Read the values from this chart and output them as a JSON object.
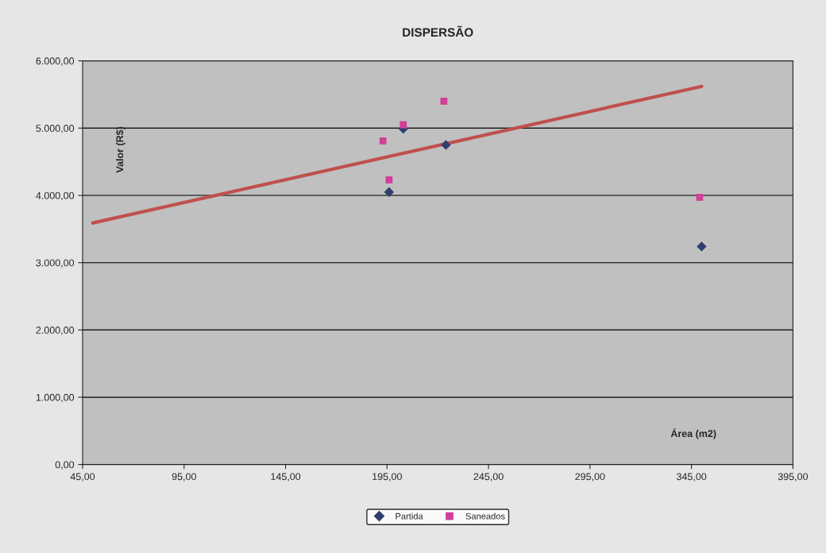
{
  "chart_data": {
    "type": "scatter",
    "title": "DISPERSÃO",
    "xlabel": "Área (m2)",
    "ylabel": "Valor (R$)",
    "xlim": [
      45,
      395
    ],
    "xticks": [
      {
        "value": 45,
        "label": "45,00"
      },
      {
        "value": 95,
        "label": "95,00"
      },
      {
        "value": 145,
        "label": "145,00"
      },
      {
        "value": 195,
        "label": "195,00"
      },
      {
        "value": 245,
        "label": "245,00"
      },
      {
        "value": 295,
        "label": "295,00"
      },
      {
        "value": 345,
        "label": "345,00"
      },
      {
        "value": 395,
        "label": "395,00"
      }
    ],
    "ylim": [
      0,
      6000
    ],
    "yticks": [
      {
        "value": 0,
        "label": "0,00"
      },
      {
        "value": 1000,
        "label": "1.000,00"
      },
      {
        "value": 2000,
        "label": "2.000,00"
      },
      {
        "value": 3000,
        "label": "3.000,00"
      },
      {
        "value": 4000,
        "label": "4.000,00"
      },
      {
        "value": 5000,
        "label": "5.000,00"
      },
      {
        "value": 6000,
        "label": "6.000,00"
      }
    ],
    "grid": "y",
    "legend": "bottom",
    "series": [
      {
        "name": "Partida",
        "color": "#2e3f6e",
        "marker": "diamond",
        "x": [
          196,
          203,
          224,
          350
        ],
        "values": [
          4050,
          4990,
          4750,
          3240
        ]
      },
      {
        "name": "Saneados",
        "color": "#d0409a",
        "marker": "square",
        "x": [
          193,
          196,
          203,
          223,
          349
        ],
        "values": [
          4810,
          4230,
          5050,
          5400,
          3970
        ]
      },
      {
        "type": "line",
        "color": "#c0504d",
        "marker": "none",
        "x": [
          50,
          350
        ],
        "values": [
          3590,
          5620
        ]
      }
    ]
  }
}
